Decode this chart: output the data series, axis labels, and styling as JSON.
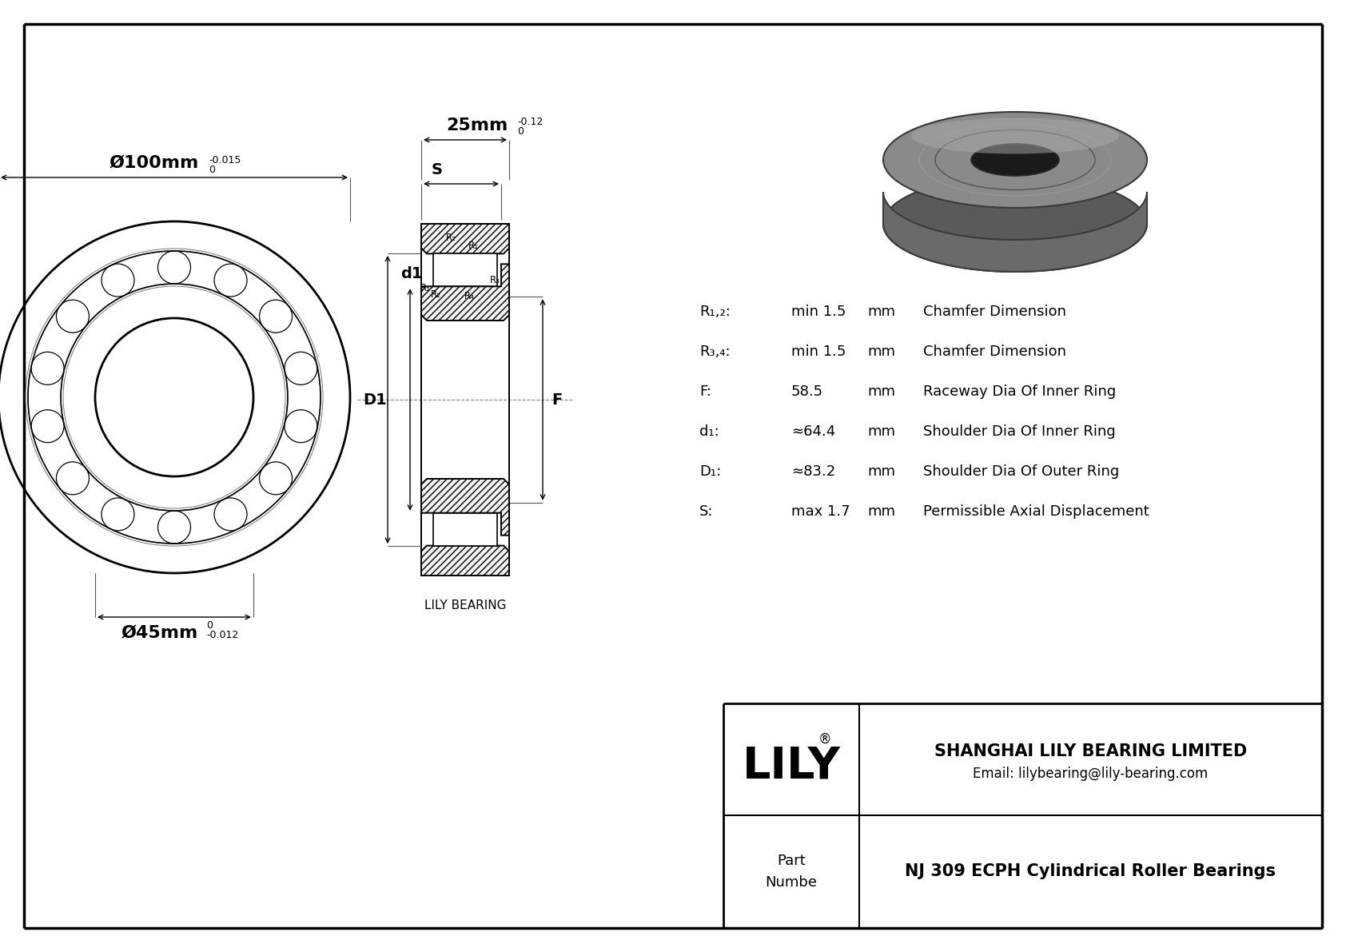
{
  "bg_color": "#ffffff",
  "border_color": "#000000",
  "title": "NJ 309 ECPH Cylindrical Roller Bearings",
  "company": "SHANGHAI LILY BEARING LIMITED",
  "email": "Email: lilybearing@lily-bearing.com",
  "part_label": "Part\nNumbe",
  "lily_brand": "LILY",
  "watermark": "LILY BEARING",
  "dim_outer_label": "Ø100mm",
  "dim_outer_sup": "0",
  "dim_outer_sub": "-0.015",
  "dim_inner_label": "Ø45mm",
  "dim_inner_sup": "0",
  "dim_inner_sub": "-0.012",
  "dim_width_label": "25mm",
  "dim_width_sup": "0",
  "dim_width_sub": "-0.12",
  "spec_rows": [
    [
      "R₁,₂:",
      "min 1.5",
      "mm",
      "Chamfer Dimension"
    ],
    [
      "R₃,₄:",
      "min 1.5",
      "mm",
      "Chamfer Dimension"
    ],
    [
      "F:",
      "58.5",
      "mm",
      "Raceway Dia Of Inner Ring"
    ],
    [
      "d₁:",
      "≈64.4",
      "mm",
      "Shoulder Dia Of Inner Ring"
    ],
    [
      "D₁:",
      "≈83.2",
      "mm",
      "Shoulder Dia Of Outer Ring"
    ],
    [
      "S:",
      "max 1.7",
      "mm",
      "Permissible Axial Displacement"
    ]
  ]
}
